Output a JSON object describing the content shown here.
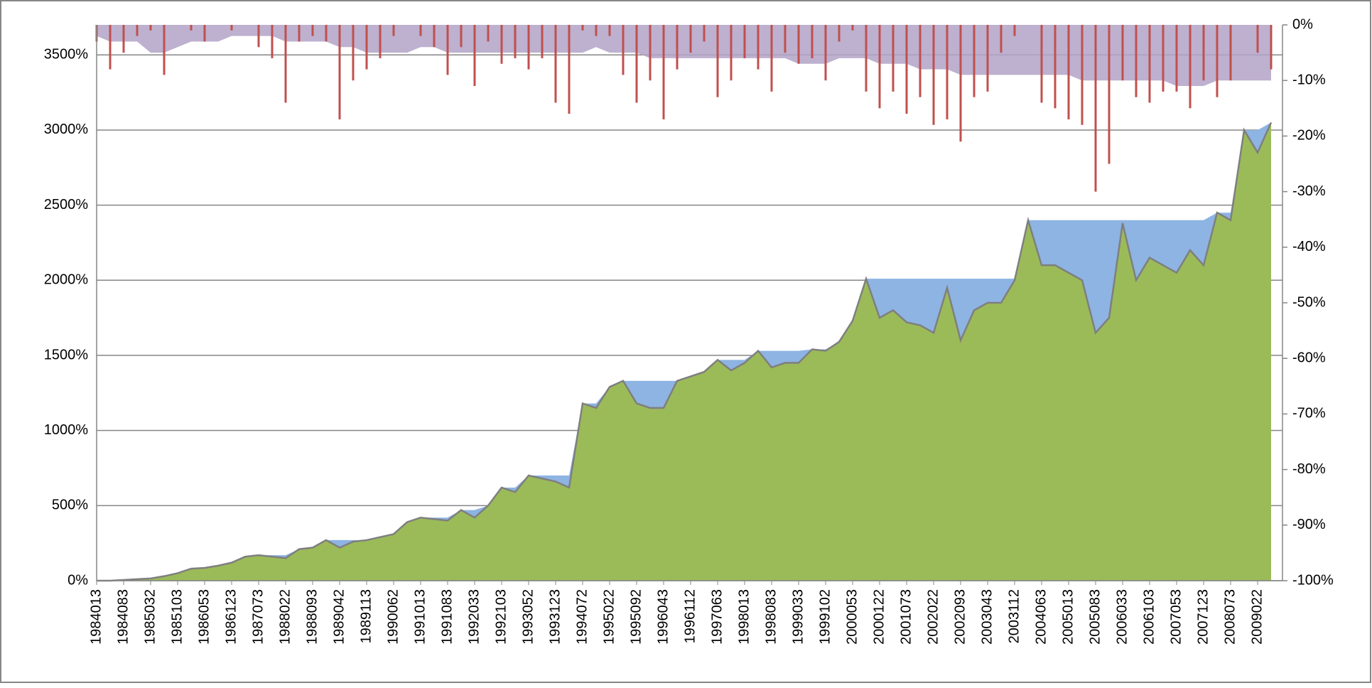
{
  "chart_data": {
    "type": "combo",
    "categories": [
      "1984013",
      null,
      "1984083",
      null,
      "1985032",
      null,
      "1985103",
      null,
      "1986053",
      null,
      "1986123",
      null,
      "1987073",
      null,
      "1988022",
      null,
      "1988093",
      null,
      "1989042",
      null,
      "1989113",
      null,
      "1990062",
      null,
      "1991013",
      null,
      "1991083",
      null,
      "1992033",
      null,
      "1992103",
      null,
      "1993052",
      null,
      "1993123",
      null,
      "1994072",
      null,
      "1995022",
      null,
      "1995092",
      null,
      "1996043",
      null,
      "1996112",
      null,
      "1997063",
      null,
      "1998013",
      null,
      "1998083",
      null,
      "1999033",
      null,
      "1999102",
      null,
      "2000053",
      null,
      "2000122",
      null,
      "2001073",
      null,
      "2002022",
      null,
      "2002093",
      null,
      "2003043",
      null,
      "2003112",
      null,
      "2004063",
      null,
      "2005013",
      null,
      "2005083",
      null,
      "2006033",
      null,
      "2006103",
      null,
      "2007053",
      null,
      "2007123",
      null,
      "2008073",
      null,
      "2009022",
      null
    ],
    "series": [
      {
        "type": "area",
        "color": "#8db4e2",
        "values": [
          0,
          0,
          5,
          10,
          15,
          30,
          50,
          80,
          85,
          100,
          120,
          160,
          170,
          170,
          170,
          210,
          220,
          270,
          270,
          270,
          270,
          290,
          310,
          390,
          420,
          420,
          420,
          470,
          470,
          500,
          620,
          620,
          700,
          700,
          700,
          700,
          1180,
          1180,
          1290,
          1330,
          1330,
          1330,
          1330,
          1330,
          1360,
          1390,
          1470,
          1470,
          1470,
          1530,
          1530,
          1530,
          1530,
          1540,
          1540,
          1590,
          1730,
          2010,
          2010,
          2010,
          2010,
          2010,
          2010,
          2010,
          2010,
          2010,
          2010,
          2010,
          2010,
          2400,
          2400,
          2400,
          2400,
          2400,
          2400,
          2400,
          2400,
          2400,
          2400,
          2400,
          2400,
          2400,
          2400,
          2450,
          2450,
          3000,
          3000,
          3050
        ]
      },
      {
        "type": "area",
        "color": "#9bbb59",
        "stroke": "#7f7f7f",
        "values": [
          0,
          0,
          5,
          10,
          15,
          30,
          50,
          80,
          85,
          100,
          120,
          160,
          170,
          160,
          150,
          210,
          220,
          270,
          220,
          260,
          270,
          290,
          310,
          390,
          420,
          410,
          400,
          470,
          420,
          500,
          620,
          590,
          700,
          680,
          660,
          620,
          1180,
          1150,
          1290,
          1330,
          1180,
          1150,
          1150,
          1330,
          1360,
          1390,
          1470,
          1400,
          1450,
          1530,
          1420,
          1450,
          1450,
          1540,
          1530,
          1590,
          1730,
          2010,
          1750,
          1800,
          1720,
          1700,
          1650,
          1950,
          1600,
          1800,
          1850,
          1850,
          2000,
          2400,
          2100,
          2100,
          2050,
          2000,
          1650,
          1750,
          2380,
          2000,
          2150,
          2100,
          2050,
          2200,
          2100,
          2450,
          2400,
          3000,
          2850,
          3050
        ]
      },
      {
        "type": "area",
        "axis": "y2",
        "color": "#b3a2c7",
        "values": [
          -2,
          -3,
          -3,
          -3,
          -5,
          -5,
          -4,
          -3,
          -3,
          -3,
          -2,
          -2,
          -2,
          -2,
          -3,
          -3,
          -3,
          -3,
          -4,
          -4,
          -5,
          -5,
          -5,
          -5,
          -4,
          -4,
          -5,
          -5,
          -5,
          -5,
          -5,
          -5,
          -5,
          -5,
          -5,
          -5,
          -5,
          -4,
          -5,
          -5,
          -5,
          -6,
          -6,
          -6,
          -6,
          -6,
          -6,
          -6,
          -6,
          -6,
          -6,
          -6,
          -7,
          -7,
          -7,
          -6,
          -6,
          -6,
          -7,
          -7,
          -7,
          -8,
          -8,
          -8,
          -9,
          -9,
          -9,
          -9,
          -9,
          -9,
          -9,
          -9,
          -9,
          -10,
          -10,
          -10,
          -10,
          -10,
          -10,
          -10,
          -11,
          -11,
          -11,
          -10,
          -10,
          -10,
          -10,
          -10
        ]
      },
      {
        "type": "bar",
        "axis": "y2",
        "color": "#c0504d",
        "values": [
          -3,
          -8,
          -5,
          -2,
          -1,
          -9,
          0,
          -1,
          -3,
          0,
          -1,
          0,
          -4,
          -6,
          -14,
          -3,
          -2,
          -3,
          -17,
          -10,
          -8,
          -6,
          -2,
          0,
          -2,
          -4,
          -9,
          -4,
          -11,
          -3,
          -7,
          -6,
          -8,
          -6,
          -14,
          -16,
          -1,
          -2,
          -2,
          -9,
          -14,
          -10,
          -17,
          -8,
          -5,
          -3,
          -13,
          -10,
          -6,
          -8,
          -12,
          -5,
          -7,
          -6,
          -10,
          -3,
          -1,
          -12,
          -15,
          -12,
          -16,
          -13,
          -18,
          -17,
          -21,
          -13,
          -12,
          -5,
          -2,
          0,
          -14,
          -15,
          -17,
          -18,
          -30,
          -25,
          -10,
          -13,
          -14,
          -12,
          -12,
          -15,
          -10,
          -13,
          -10,
          0,
          -5,
          -8
        ]
      }
    ],
    "ylim": [
      0,
      3700
    ],
    "yticks": [
      {
        "value": 0,
        "label": "0%"
      },
      {
        "value": 500,
        "label": "500%"
      },
      {
        "value": 1000,
        "label": "1000%"
      },
      {
        "value": 1500,
        "label": "1500%"
      },
      {
        "value": 2000,
        "label": "2000%"
      },
      {
        "value": 2500,
        "label": "2500%"
      },
      {
        "value": 3000,
        "label": "3000%"
      },
      {
        "value": 3500,
        "label": "3500%"
      }
    ],
    "y2lim": [
      -100,
      0
    ],
    "y2ticks": [
      {
        "value": 0,
        "label": "0%"
      },
      {
        "value": -10,
        "label": "-10%"
      },
      {
        "value": -20,
        "label": "-20%"
      },
      {
        "value": -30,
        "label": "-30%"
      },
      {
        "value": -40,
        "label": "-40%"
      },
      {
        "value": -50,
        "label": "-50%"
      },
      {
        "value": -60,
        "label": "-60%"
      },
      {
        "value": -70,
        "label": "-70%"
      },
      {
        "value": -80,
        "label": "-80%"
      },
      {
        "value": -90,
        "label": "-90%"
      },
      {
        "value": -100,
        "label": "-100%"
      }
    ],
    "grid": true
  }
}
